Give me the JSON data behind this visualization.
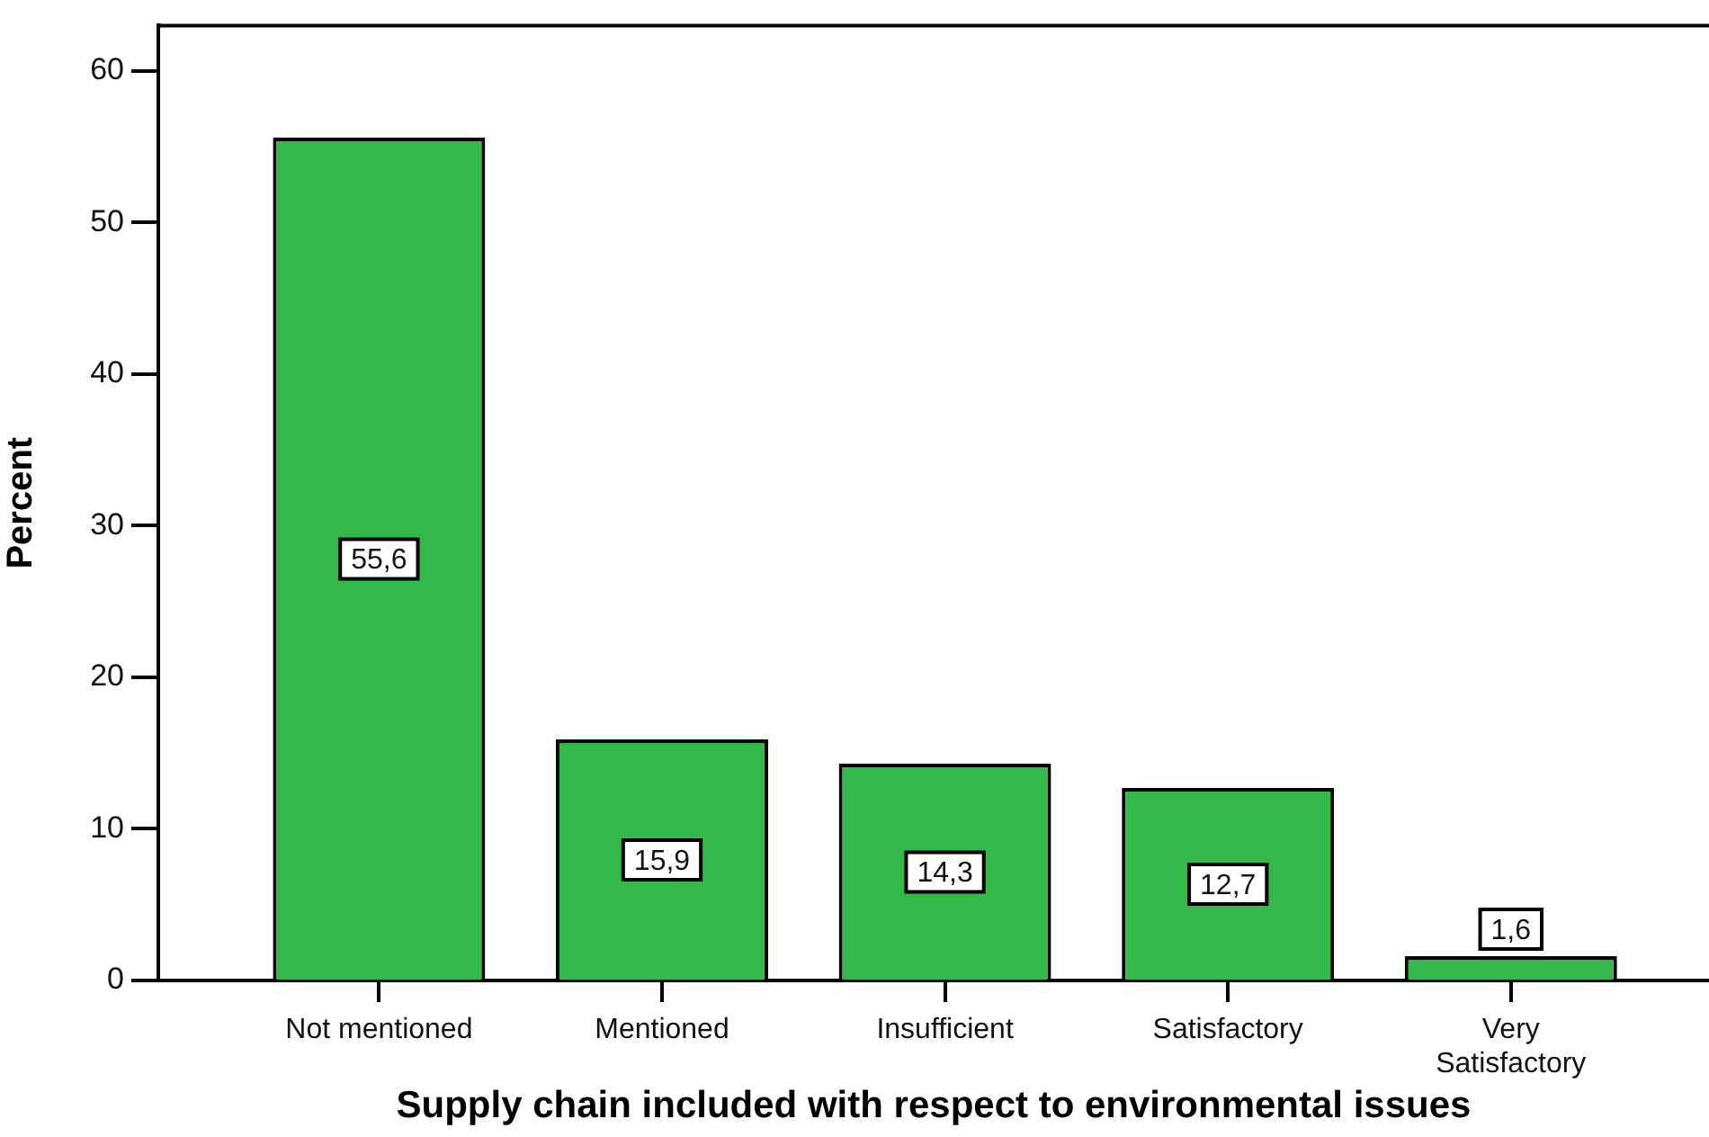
{
  "chart_data": {
    "type": "bar",
    "xlabel": "Supply chain included with respect to environmental issues",
    "ylabel": "Percent",
    "categories": [
      "Not mentioned",
      "Mentioned",
      "Insufficient",
      "Satisfactory",
      "Very\nSatisfactory"
    ],
    "values": [
      55.6,
      15.9,
      14.3,
      12.7,
      1.6
    ],
    "value_labels": [
      "55,6",
      "15,9",
      "14,3",
      "12,7",
      "1,6"
    ],
    "color": "#33b84a",
    "ylim": [
      0,
      63
    ],
    "yticks": [
      0,
      10,
      20,
      30,
      40,
      50,
      60
    ]
  }
}
